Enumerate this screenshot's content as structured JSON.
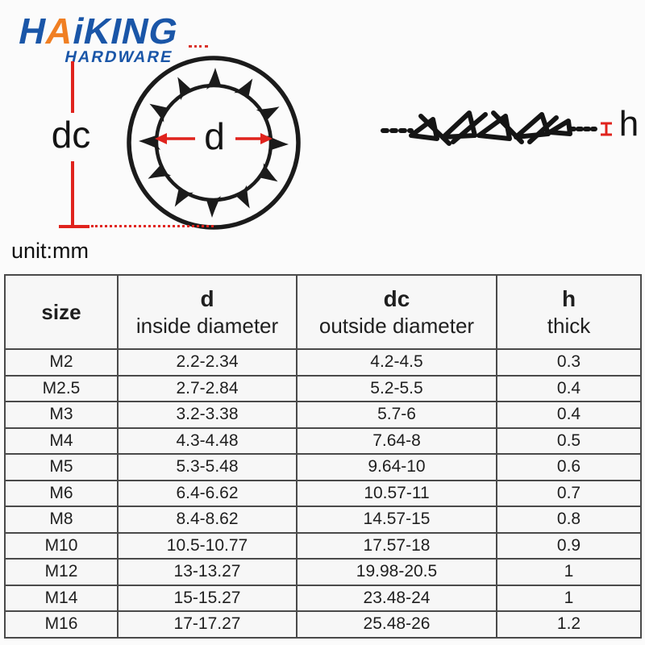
{
  "colors": {
    "brand_blue": "#1a56a8",
    "brand_orange": "#f07f23",
    "dimension_red": "#e0231d",
    "drawing_black": "#1b1b1b"
  },
  "logo": {
    "part1": "H",
    "accent": "A",
    "part2": "iKING",
    "subtitle": "HARDWARE"
  },
  "diagram": {
    "outside_diameter_label": "dc",
    "inside_diameter_label": "d",
    "thickness_label": "h",
    "unit_note": "unit:mm"
  },
  "table": {
    "headers": [
      {
        "symbol": "size",
        "desc": ""
      },
      {
        "symbol": "d",
        "desc": "inside diameter"
      },
      {
        "symbol": "dc",
        "desc": "outside diameter"
      },
      {
        "symbol": "h",
        "desc": "thick"
      }
    ],
    "rows": [
      [
        "M2",
        "2.2-2.34",
        "4.2-4.5",
        "0.3"
      ],
      [
        "M2.5",
        "2.7-2.84",
        "5.2-5.5",
        "0.4"
      ],
      [
        "M3",
        "3.2-3.38",
        "5.7-6",
        "0.4"
      ],
      [
        "M4",
        "4.3-4.48",
        "7.64-8",
        "0.5"
      ],
      [
        "M5",
        "5.3-5.48",
        "9.64-10",
        "0.6"
      ],
      [
        "M6",
        "6.4-6.62",
        "10.57-11",
        "0.7"
      ],
      [
        "M8",
        "8.4-8.62",
        "14.57-15",
        "0.8"
      ],
      [
        "M10",
        "10.5-10.77",
        "17.57-18",
        "0.9"
      ],
      [
        "M12",
        "13-13.27",
        "19.98-20.5",
        "1"
      ],
      [
        "M14",
        "15-15.27",
        "23.48-24",
        "1"
      ],
      [
        "M16",
        "17-17.27",
        "25.48-26",
        "1.2"
      ]
    ]
  }
}
